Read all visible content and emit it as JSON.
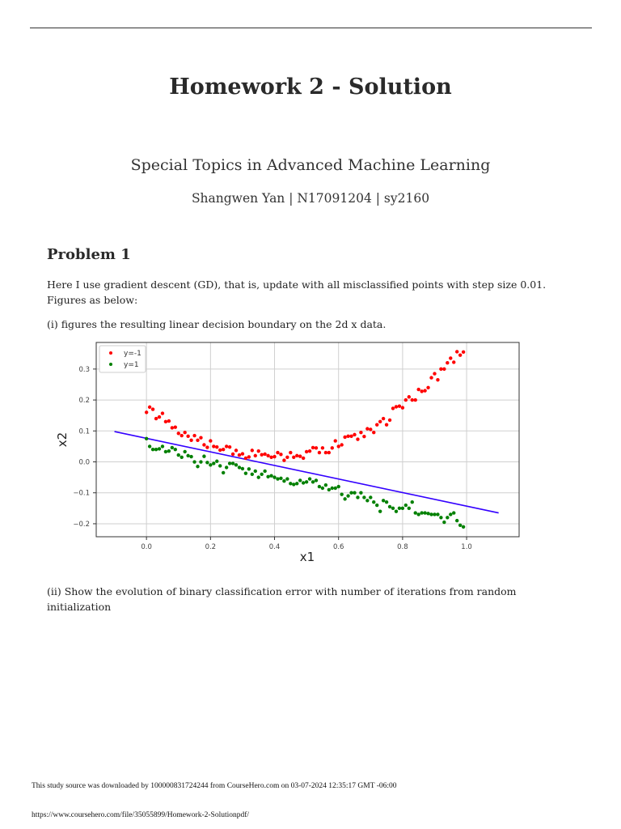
{
  "document": {
    "title": "Homework 2 - Solution",
    "subtitle": "Special Topics in Advanced Machine Learning",
    "author_line": "Shangwen Yan | N17091204 | sy2160",
    "section_heading": "Problem 1",
    "paragraph_1": "Here I use gradient descent (GD), that is, update with all misclassified points with step size 0.01. Figures as below:",
    "paragraph_2": "(i) figures the resulting linear decision boundary on the 2d x data.",
    "paragraph_3": "(ii) Show the evolution of binary classification error with number of iterations from random initialization"
  },
  "footer": {
    "download_note": "This study source was downloaded by 100000831724244 from CourseHero.com on 03-07-2024 12:35:17 GMT -06:00",
    "url": "https://www.coursehero.com/file/35055899/Homework-2-Solutionpdf/"
  },
  "chart_data": {
    "type": "scatter",
    "xlabel": "x1",
    "ylabel": "x2",
    "xlim": [
      -0.157,
      1.164
    ],
    "ylim": [
      -0.242,
      0.386
    ],
    "xticks": [
      0.0,
      0.2,
      0.4,
      0.6,
      0.8,
      1.0
    ],
    "xtick_labels": [
      "0.0",
      "0.2",
      "0.4",
      "0.6",
      "0.8",
      "1.0"
    ],
    "yticks": [
      0.3,
      0.2,
      0.1,
      0.0,
      -0.1,
      -0.2
    ],
    "ytick_labels": [
      "0.3",
      "0.2",
      "0.1",
      "0.0",
      "−0.1",
      "−0.2"
    ],
    "grid": true,
    "legend": "top-left",
    "x_start": 0.0,
    "x_step": 0.01,
    "series": [
      {
        "name": "y=-1",
        "color": "#ff0000",
        "values": [
          0.16,
          0.177,
          0.17,
          0.14,
          0.145,
          0.157,
          0.13,
          0.132,
          0.11,
          0.112,
          0.092,
          0.085,
          0.095,
          0.083,
          0.07,
          0.085,
          0.07,
          0.078,
          0.055,
          0.047,
          0.068,
          0.05,
          0.048,
          0.038,
          0.04,
          0.05,
          0.048,
          0.025,
          0.037,
          0.022,
          0.026,
          0.012,
          0.016,
          0.037,
          0.02,
          0.035,
          0.023,
          0.025,
          0.02,
          0.015,
          0.017,
          0.03,
          0.024,
          0.005,
          0.015,
          0.03,
          0.015,
          0.02,
          0.018,
          0.012,
          0.033,
          0.035,
          0.046,
          0.045,
          0.03,
          0.045,
          0.03,
          0.03,
          0.045,
          0.068,
          0.05,
          0.055,
          0.08,
          0.083,
          0.083,
          0.088,
          0.073,
          0.095,
          0.082,
          0.107,
          0.105,
          0.095,
          0.12,
          0.13,
          0.14,
          0.12,
          0.135,
          0.173,
          0.178,
          0.18,
          0.175,
          0.2,
          0.21,
          0.2,
          0.2,
          0.234,
          0.228,
          0.23,
          0.24,
          0.272,
          0.285,
          0.265,
          0.3,
          0.3,
          0.32,
          0.335,
          0.322,
          0.356,
          0.345,
          0.355
        ]
      },
      {
        "name": "y=1",
        "color": "#008000",
        "values": [
          0.075,
          0.05,
          0.04,
          0.04,
          0.042,
          0.05,
          0.033,
          0.035,
          0.046,
          0.04,
          0.022,
          0.015,
          0.033,
          0.02,
          0.017,
          0.0,
          -0.015,
          0.0,
          0.018,
          -0.002,
          -0.01,
          -0.005,
          0.002,
          -0.013,
          -0.035,
          -0.018,
          -0.005,
          -0.005,
          -0.01,
          -0.018,
          -0.022,
          -0.037,
          -0.023,
          -0.04,
          -0.03,
          -0.05,
          -0.04,
          -0.03,
          -0.048,
          -0.045,
          -0.05,
          -0.055,
          -0.053,
          -0.062,
          -0.055,
          -0.07,
          -0.073,
          -0.07,
          -0.06,
          -0.068,
          -0.065,
          -0.055,
          -0.065,
          -0.06,
          -0.08,
          -0.085,
          -0.075,
          -0.09,
          -0.085,
          -0.085,
          -0.08,
          -0.105,
          -0.12,
          -0.11,
          -0.1,
          -0.1,
          -0.115,
          -0.1,
          -0.115,
          -0.125,
          -0.115,
          -0.13,
          -0.14,
          -0.16,
          -0.125,
          -0.13,
          -0.145,
          -0.15,
          -0.16,
          -0.15,
          -0.15,
          -0.14,
          -0.15,
          -0.13,
          -0.165,
          -0.17,
          -0.165,
          -0.165,
          -0.167,
          -0.17,
          -0.17,
          -0.17,
          -0.18,
          -0.195,
          -0.18,
          -0.17,
          -0.165,
          -0.19,
          -0.205,
          -0.21
        ]
      }
    ],
    "decision_boundary": {
      "color": "#3300ff",
      "x": [
        -0.1,
        1.1
      ],
      "y": [
        0.098,
        -0.165
      ]
    }
  }
}
